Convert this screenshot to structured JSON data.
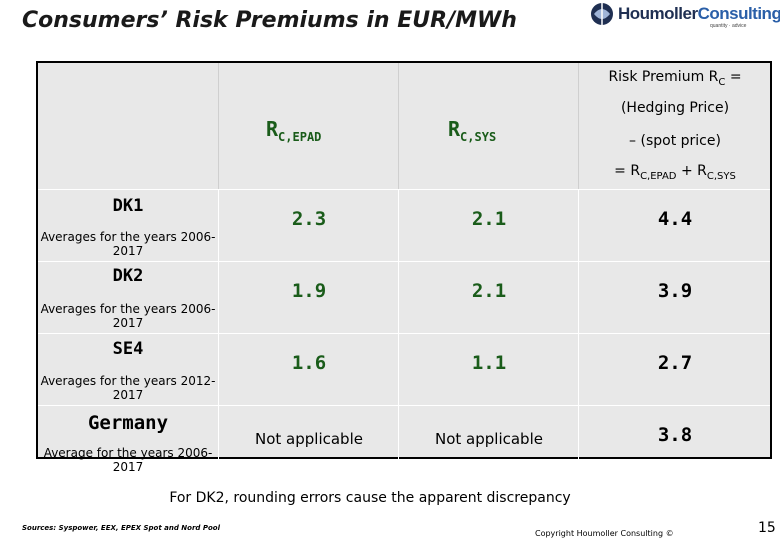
{
  "title": "Consumers’ Risk Premiums in EUR/MWh",
  "logo": {
    "name_part1": "Houmoller",
    "name_part2": "Consulting",
    "tagline": "quantity · advice"
  },
  "table": {
    "headers": {
      "col2": {
        "main": "R",
        "sub": "C,EPAD"
      },
      "col3": {
        "main": "R",
        "sub": "C,SYS"
      },
      "col4": {
        "line1_main": "Risk Premium R",
        "line1_sub": "C",
        "line1_suffix": " =",
        "line2": "(Hedging Price)",
        "line3": "– (spot price)",
        "line4_prefix": "= R",
        "line4_sub1": "C,EPAD",
        "line4_mid": " + R",
        "line4_sub2": "C,SYS"
      }
    },
    "rows": [
      {
        "region": "DK1",
        "period": "Averages for the years 2006-2017",
        "epad": "2.3",
        "sys": "2.1",
        "total": "4.4"
      },
      {
        "region": "DK2",
        "period": "Averages for the years 2006-2017",
        "epad": "1.9",
        "sys": "2.1",
        "total": "3.9"
      },
      {
        "region": "SE4",
        "period": "Averages for the years 2012-2017",
        "epad": "1.6",
        "sys": "1.1",
        "total": "2.7"
      },
      {
        "region": "Germany",
        "period": "Average for the years 2006-2017",
        "epad": "Not applicable",
        "sys": "Not applicable",
        "total": "3.8"
      }
    ]
  },
  "footnote": "For DK2, rounding errors cause the apparent discrepancy",
  "sources": "Sources: Syspower, EEX, EPEX Spot and Nord Pool",
  "copyright": "Copyright Houmoller Consulting ©",
  "page_number": "15",
  "colors": {
    "header_green": "#1a5c1a",
    "table_bg": "#e8e8e8",
    "logo_navy": "#1f2f52",
    "logo_blue": "#2a5fa8"
  }
}
